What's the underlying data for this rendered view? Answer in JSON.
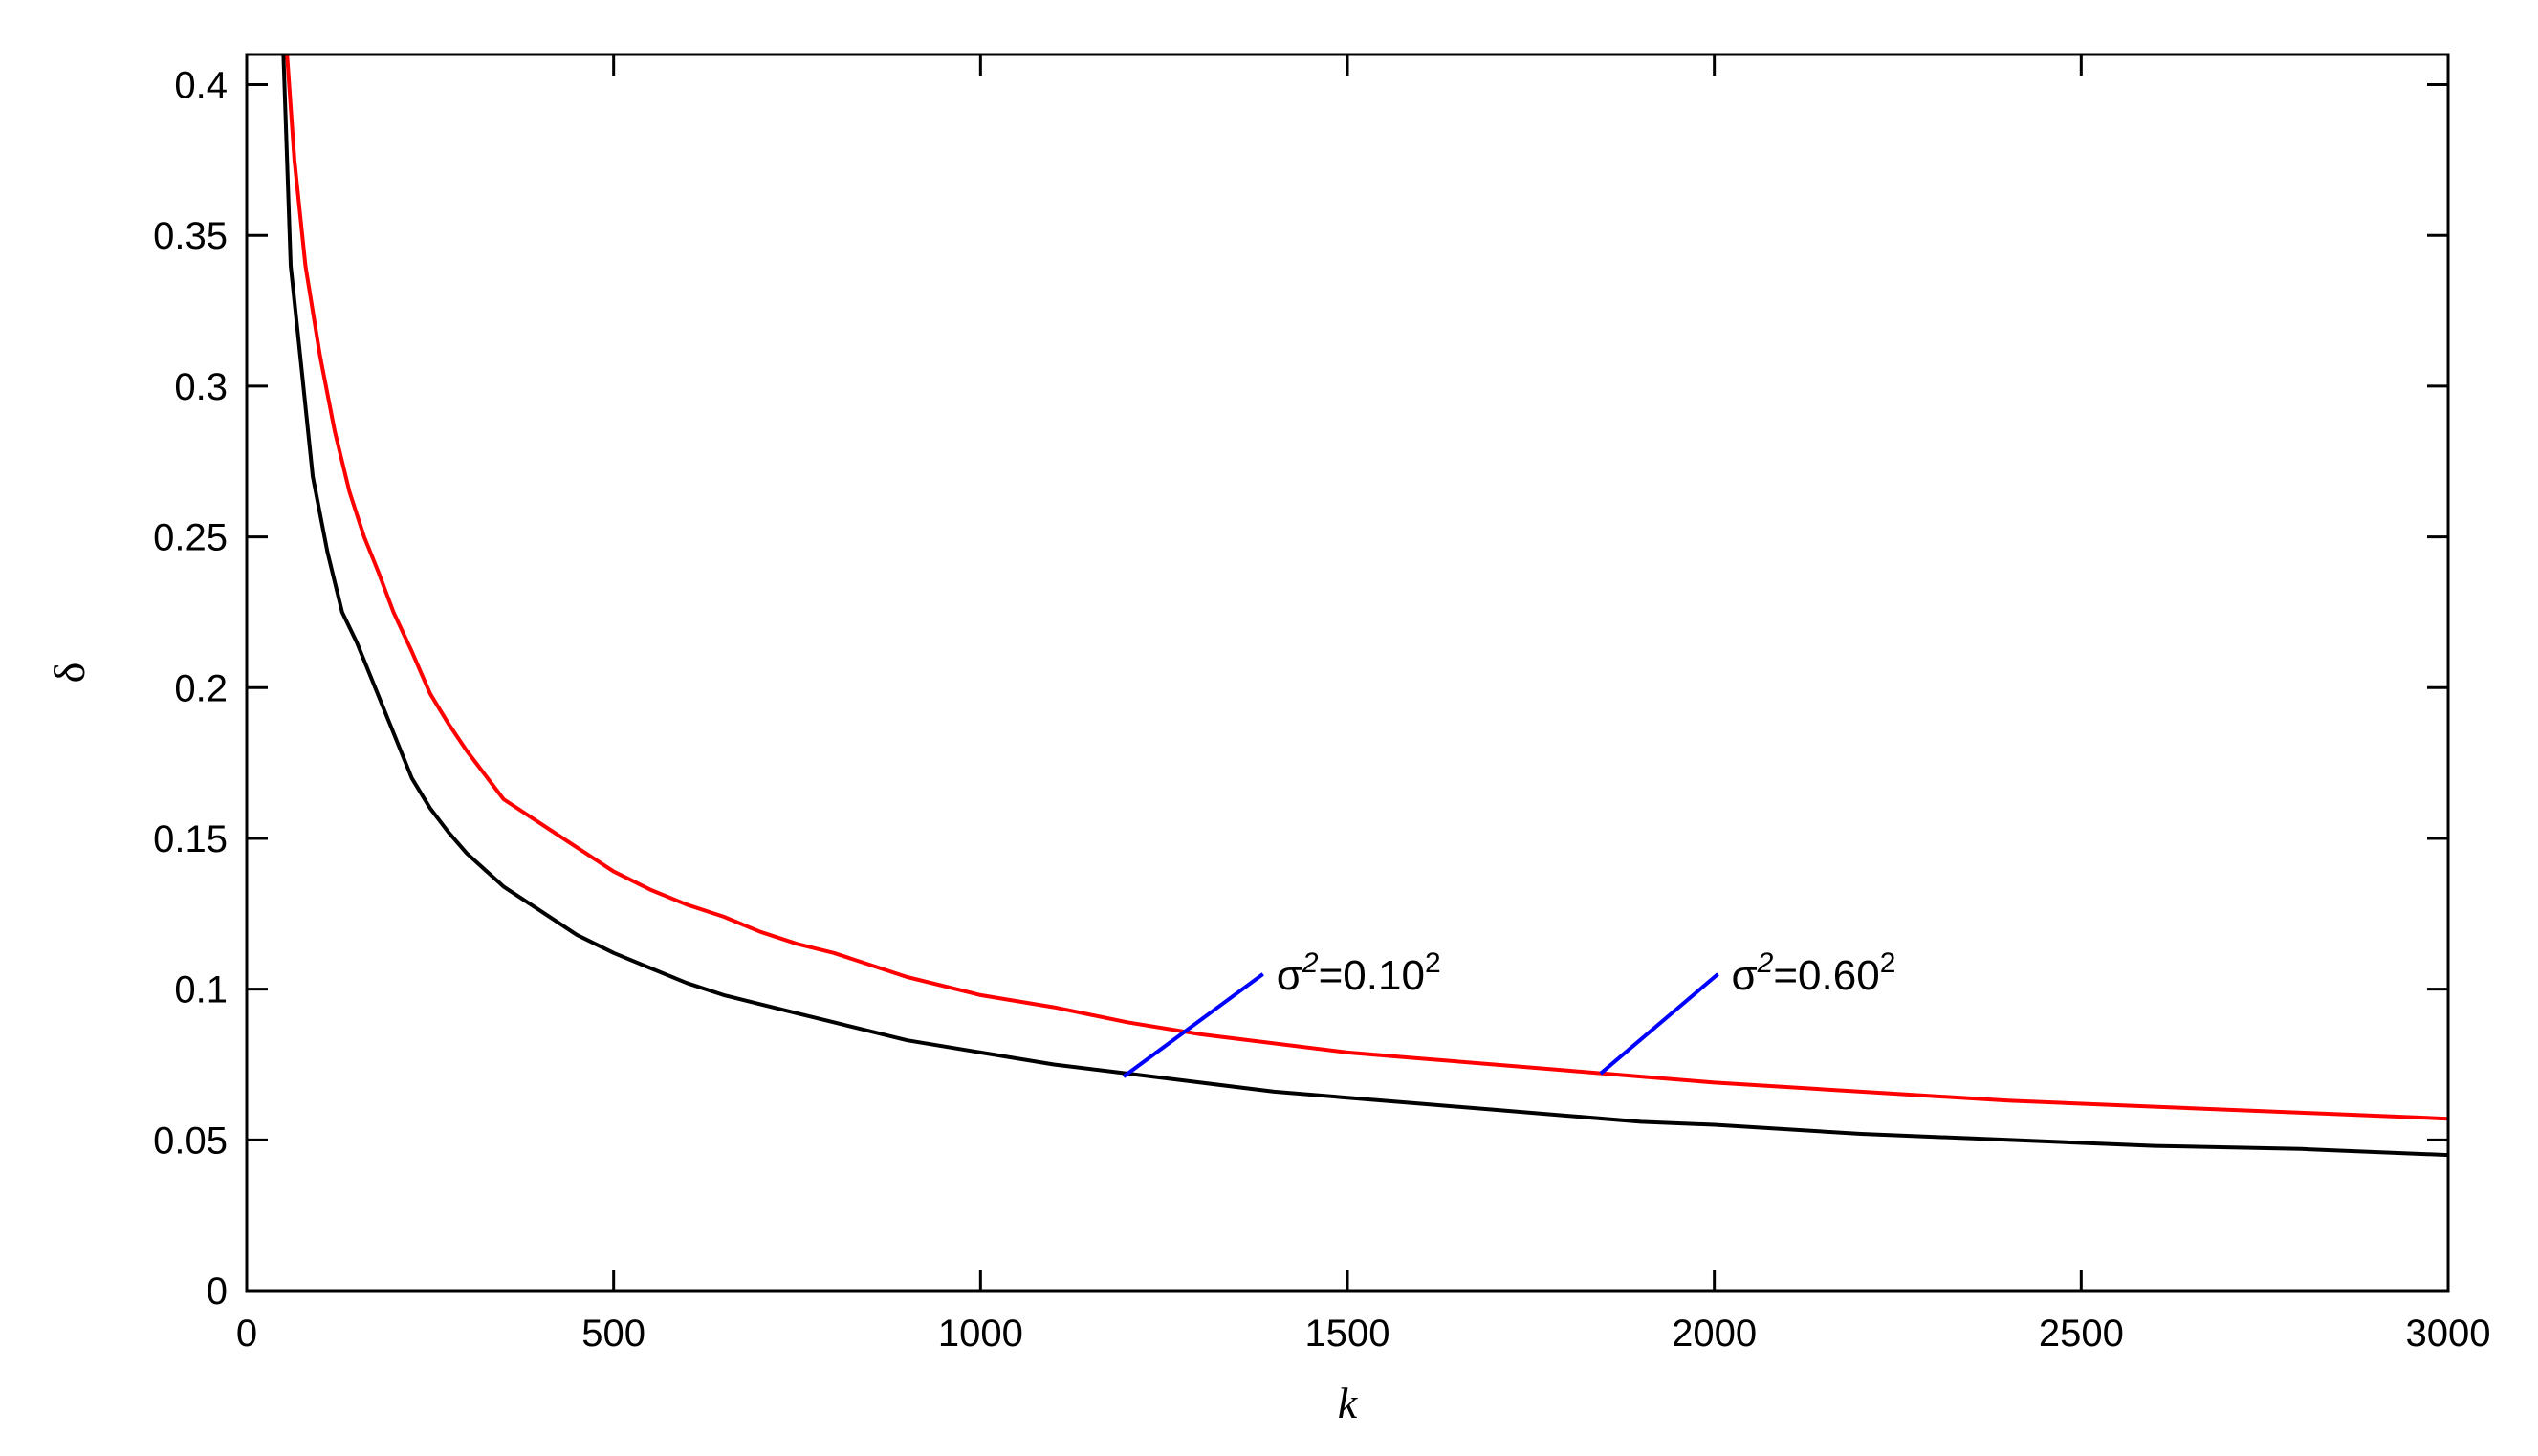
{
  "chart_data": {
    "type": "line",
    "xlabel": "k",
    "ylabel": "δ",
    "xlim": [
      0,
      3000
    ],
    "ylim": [
      0,
      0.41
    ],
    "xticks": [
      0,
      500,
      1000,
      1500,
      2000,
      2500,
      3000
    ],
    "yticks": [
      0,
      0.05,
      0.1,
      0.15,
      0.2,
      0.25,
      0.3,
      0.35,
      0.4
    ],
    "xtick_labels": [
      "0",
      "500",
      "1000",
      "1500",
      "2000",
      "2500",
      "3000"
    ],
    "ytick_labels": [
      "0",
      "0.05",
      "0.1",
      "0.15",
      "0.2",
      "0.25",
      "0.3",
      "0.35",
      "0.4"
    ],
    "grid": false,
    "series": [
      {
        "color": "#000000",
        "x": [
          50,
          60,
          75,
          90,
          110,
          130,
          150,
          175,
          200,
          225,
          250,
          275,
          300,
          350,
          400,
          450,
          500,
          550,
          600,
          650,
          700,
          750,
          800,
          900,
          1000,
          1100,
          1200,
          1300,
          1400,
          1500,
          1600,
          1700,
          1800,
          1900,
          2000,
          2200,
          2400,
          2600,
          2800,
          3000
        ],
        "y": [
          0.41,
          0.34,
          0.305,
          0.27,
          0.245,
          0.225,
          0.215,
          0.2,
          0.185,
          0.17,
          0.16,
          0.152,
          0.145,
          0.134,
          0.126,
          0.118,
          0.112,
          0.107,
          0.102,
          0.098,
          0.095,
          0.092,
          0.089,
          0.083,
          0.079,
          0.075,
          0.072,
          0.069,
          0.066,
          0.064,
          0.062,
          0.06,
          0.058,
          0.056,
          0.055,
          0.052,
          0.05,
          0.048,
          0.047,
          0.045
        ]
      },
      {
        "color": "#ff0000",
        "x": [
          55,
          65,
          80,
          100,
          120,
          140,
          160,
          180,
          200,
          225,
          250,
          275,
          300,
          350,
          400,
          450,
          500,
          550,
          600,
          650,
          700,
          750,
          800,
          900,
          1000,
          1100,
          1200,
          1300,
          1400,
          1500,
          1600,
          1700,
          1800,
          1900,
          2000,
          2200,
          2400,
          2600,
          2800,
          3000
        ],
        "y": [
          0.41,
          0.375,
          0.34,
          0.31,
          0.285,
          0.265,
          0.25,
          0.238,
          0.225,
          0.212,
          0.198,
          0.188,
          0.179,
          0.163,
          0.155,
          0.147,
          0.139,
          0.133,
          0.128,
          0.124,
          0.119,
          0.115,
          0.112,
          0.104,
          0.098,
          0.094,
          0.089,
          0.085,
          0.082,
          0.079,
          0.077,
          0.075,
          0.073,
          0.071,
          0.069,
          0.066,
          0.063,
          0.061,
          0.059,
          0.057
        ]
      }
    ],
    "annotations": [
      {
        "label_base": "σ",
        "label_exp": "2",
        "label_mid": "=0.10",
        "label_exp2": "2",
        "point": [
          1195,
          0.071
        ],
        "text_anchor": [
          1385,
          0.105
        ],
        "line_color": "#0000ff"
      },
      {
        "label_base": "σ",
        "label_exp": "2",
        "label_mid": "=0.60",
        "label_exp2": "2",
        "point": [
          1845,
          0.072
        ],
        "text_anchor": [
          2005,
          0.105
        ],
        "line_color": "#0000ff"
      }
    ]
  }
}
